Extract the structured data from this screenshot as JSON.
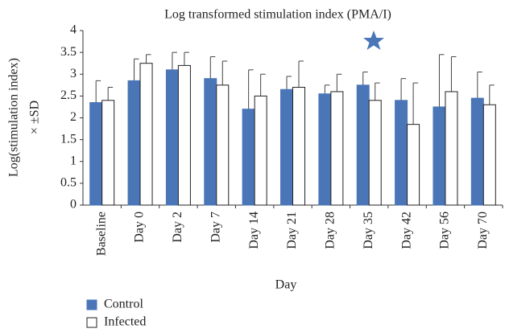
{
  "chart_data": {
    "type": "bar",
    "title": "Log transformed stimulation index (PMA/I)",
    "x_label": "Day",
    "y_label": [
      "Log(stimulation index)",
      "× ±SD"
    ],
    "categories": [
      "Baseline",
      "Day 0",
      "Day 2",
      "Day 7",
      "Day 14",
      "Day 21",
      "Day 28",
      "Day 35",
      "Day 42",
      "Day 56",
      "Day 70"
    ],
    "series": [
      {
        "name": "Control",
        "color": "#4a76b8",
        "values": [
          2.35,
          2.85,
          3.1,
          2.9,
          2.2,
          2.65,
          2.55,
          2.75,
          2.4,
          2.25,
          2.45
        ],
        "errors": [
          0.5,
          0.5,
          0.4,
          0.5,
          0.9,
          0.3,
          0.2,
          0.3,
          0.5,
          1.2,
          0.6
        ]
      },
      {
        "name": "Infected",
        "color": "#ffffff",
        "values": [
          2.4,
          3.25,
          3.2,
          2.75,
          2.5,
          2.7,
          2.6,
          2.4,
          1.85,
          2.6,
          2.3
        ],
        "errors": [
          0.3,
          0.2,
          0.3,
          0.55,
          0.5,
          0.6,
          0.4,
          0.4,
          0.95,
          0.8,
          0.45
        ]
      }
    ],
    "ylim": [
      0,
      4
    ],
    "yticks": [
      0,
      0.5,
      1,
      1.5,
      2,
      2.5,
      3,
      3.5,
      4
    ],
    "grid": false
  }
}
